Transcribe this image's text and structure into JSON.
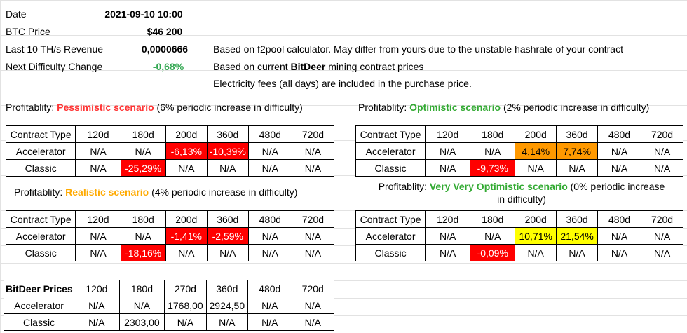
{
  "info": {
    "date_label": "Date",
    "date_value": "2021-09-10 10:00",
    "btc_label": "BTC Price",
    "btc_value": "$46 200",
    "revenue_label": "Last 10 TH/s Revenue",
    "revenue_value": "0,0000666",
    "difficulty_label": "Next Difficulty Change",
    "difficulty_value": "-0,68%",
    "note1": "Based on f2pool calculator. May differ from yours due to the unstable hashrate of your contract",
    "note2_prefix": "Based on current ",
    "note2_brand": "BitDeer",
    "note2_suffix": " mining contract prices",
    "note3": "Electricity fees (all days) are included in the purchase price."
  },
  "titles": {
    "prefix": "Profitablity: ",
    "pessimistic_name": "Pessimistic scenario",
    "pessimistic_desc": " (6% periodic increase in difficulty)",
    "optimistic_name": "Optimistic scenario",
    "optimistic_desc": " (2% periodic increase in difficulty)",
    "realistic_name": "Realistic scenario",
    "realistic_desc": " (4% periodic increase in difficulty)",
    "vvo_name": "Very Very Optimistic scenario",
    "vvo_desc_line1": " (0% periodic increase",
    "vvo_desc_line2": "in difficulty)"
  },
  "headers": [
    "Contract Type",
    "120d",
    "180d",
    "200d",
    "360d",
    "480d",
    "720d"
  ],
  "pessimistic": [
    [
      "Accelerator",
      "N/A",
      "N/A",
      "-6,13%",
      "-10,39%",
      "N/A",
      "N/A"
    ],
    [
      "Classic",
      "N/A",
      "-25,29%",
      "N/A",
      "N/A",
      "N/A",
      "N/A"
    ]
  ],
  "optimistic": [
    [
      "Accelerator",
      "N/A",
      "N/A",
      "4,14%",
      "7,74%",
      "N/A",
      "N/A"
    ],
    [
      "Classic",
      "N/A",
      "-9,73%",
      "N/A",
      "N/A",
      "N/A",
      "N/A"
    ]
  ],
  "realistic": [
    [
      "Accelerator",
      "N/A",
      "N/A",
      "-1,41%",
      "-2,59%",
      "N/A",
      "N/A"
    ],
    [
      "Classic",
      "N/A",
      "-18,16%",
      "N/A",
      "N/A",
      "N/A",
      "N/A"
    ]
  ],
  "vvo": [
    [
      "Accelerator",
      "N/A",
      "N/A",
      "10,71%",
      "21,54%",
      "N/A",
      "N/A"
    ],
    [
      "Classic",
      "N/A",
      "-0,09%",
      "N/A",
      "N/A",
      "N/A",
      "N/A"
    ]
  ],
  "prices": {
    "headers": [
      "BitDeer Prices",
      "120d",
      "180d",
      "270d",
      "360d",
      "480d",
      "720d"
    ],
    "rows": [
      [
        "Accelerator",
        "N/A",
        "N/A",
        "1768,00",
        "2924,50",
        "N/A",
        "N/A"
      ],
      [
        "Classic",
        "N/A",
        "2303,00",
        "N/A",
        "N/A",
        "N/A",
        "N/A"
      ]
    ]
  },
  "colors": {
    "negative": "#ff0000",
    "positive_mid": "#ff9900",
    "positive_high": "#ffff00",
    "pessimistic": "#ff3333",
    "optimistic": "#33aa33",
    "realistic": "#ffaa00"
  }
}
